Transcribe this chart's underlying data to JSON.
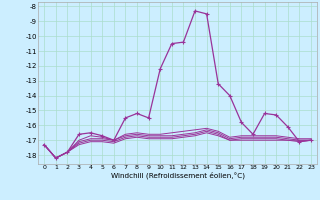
{
  "xlabel": "Windchill (Refroidissement éolien,°C)",
  "bg_color": "#cceeff",
  "grid_color": "#aaddcc",
  "line_color": "#993399",
  "xlim": [
    -0.5,
    23.5
  ],
  "ylim": [
    -18.6,
    -7.7
  ],
  "yticks": [
    -8,
    -9,
    -10,
    -11,
    -12,
    -13,
    -14,
    -15,
    -16,
    -17,
    -18
  ],
  "xticks": [
    0,
    1,
    2,
    3,
    4,
    5,
    6,
    7,
    8,
    9,
    10,
    11,
    12,
    13,
    14,
    15,
    16,
    17,
    18,
    19,
    20,
    21,
    22,
    23
  ],
  "main_y": [
    -17.3,
    -18.2,
    -17.8,
    -16.6,
    -16.5,
    -16.7,
    -17.0,
    -15.5,
    -15.2,
    -15.5,
    -12.2,
    -10.5,
    -10.4,
    -8.3,
    -8.5,
    -13.2,
    -14.0,
    -15.8,
    -16.6,
    -15.2,
    -15.3,
    -16.1,
    -17.1,
    -17.0
  ],
  "ref1": [
    -17.3,
    -18.2,
    -17.8,
    -17.0,
    -16.7,
    -16.8,
    -17.0,
    -16.6,
    -16.5,
    -16.6,
    -16.6,
    -16.5,
    -16.4,
    -16.3,
    -16.2,
    -16.4,
    -16.8,
    -16.7,
    -16.7,
    -16.7,
    -16.7,
    -16.8,
    -16.9,
    -16.9
  ],
  "ref2": [
    -17.3,
    -18.2,
    -17.8,
    -17.1,
    -16.9,
    -16.9,
    -17.0,
    -16.7,
    -16.6,
    -16.7,
    -16.7,
    -16.7,
    -16.6,
    -16.5,
    -16.3,
    -16.5,
    -16.9,
    -16.8,
    -16.8,
    -16.8,
    -16.8,
    -16.9,
    -17.0,
    -17.0
  ],
  "ref3": [
    -17.3,
    -18.2,
    -17.8,
    -17.2,
    -17.0,
    -17.0,
    -17.1,
    -16.8,
    -16.7,
    -16.8,
    -16.8,
    -16.8,
    -16.7,
    -16.6,
    -16.4,
    -16.6,
    -17.0,
    -16.9,
    -16.9,
    -16.9,
    -16.9,
    -17.0,
    -17.0,
    -17.0
  ],
  "ref4": [
    -17.3,
    -18.2,
    -17.8,
    -17.3,
    -17.1,
    -17.1,
    -17.2,
    -16.9,
    -16.8,
    -16.9,
    -16.9,
    -16.9,
    -16.8,
    -16.7,
    -16.5,
    -16.7,
    -17.0,
    -17.0,
    -17.0,
    -17.0,
    -17.0,
    -17.0,
    -17.1,
    -17.0
  ]
}
